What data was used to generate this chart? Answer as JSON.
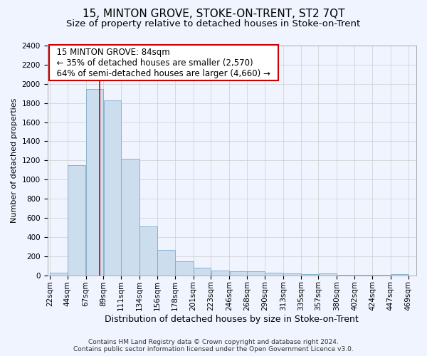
{
  "title": "15, MINTON GROVE, STOKE-ON-TRENT, ST2 7QT",
  "subtitle": "Size of property relative to detached houses in Stoke-on-Trent",
  "xlabel": "Distribution of detached houses by size in Stoke-on-Trent",
  "ylabel": "Number of detached properties",
  "footer_line1": "Contains HM Land Registry data © Crown copyright and database right 2024.",
  "footer_line2": "Contains public sector information licensed under the Open Government Licence v3.0.",
  "annotation_line1": "15 MINTON GROVE: 84sqm",
  "annotation_line2": "← 35% of detached houses are smaller (2,570)",
  "annotation_line3": "64% of semi-detached houses are larger (4,660) →",
  "property_line_x": 84,
  "bar_color": "#ccdded",
  "bar_edge_color": "#7aabcc",
  "line_color": "#cc0000",
  "annotation_box_edge_color": "#cc0000",
  "background_color": "#f0f4ff",
  "grid_color": "#cccccc",
  "bins": [
    22,
    44,
    67,
    89,
    111,
    134,
    156,
    178,
    201,
    223,
    246,
    268,
    290,
    313,
    335,
    357,
    380,
    402,
    424,
    447,
    469
  ],
  "values": [
    30,
    1150,
    1950,
    1830,
    1220,
    510,
    265,
    150,
    80,
    50,
    45,
    40,
    25,
    20,
    15,
    20,
    5,
    5,
    5,
    15
  ],
  "ylim": [
    0,
    2400
  ],
  "yticks": [
    0,
    200,
    400,
    600,
    800,
    1000,
    1200,
    1400,
    1600,
    1800,
    2000,
    2200,
    2400
  ],
  "title_fontsize": 11,
  "subtitle_fontsize": 9.5,
  "xlabel_fontsize": 9,
  "ylabel_fontsize": 8,
  "tick_fontsize": 7.5,
  "annotation_fontsize": 8.5,
  "footer_fontsize": 6.5
}
